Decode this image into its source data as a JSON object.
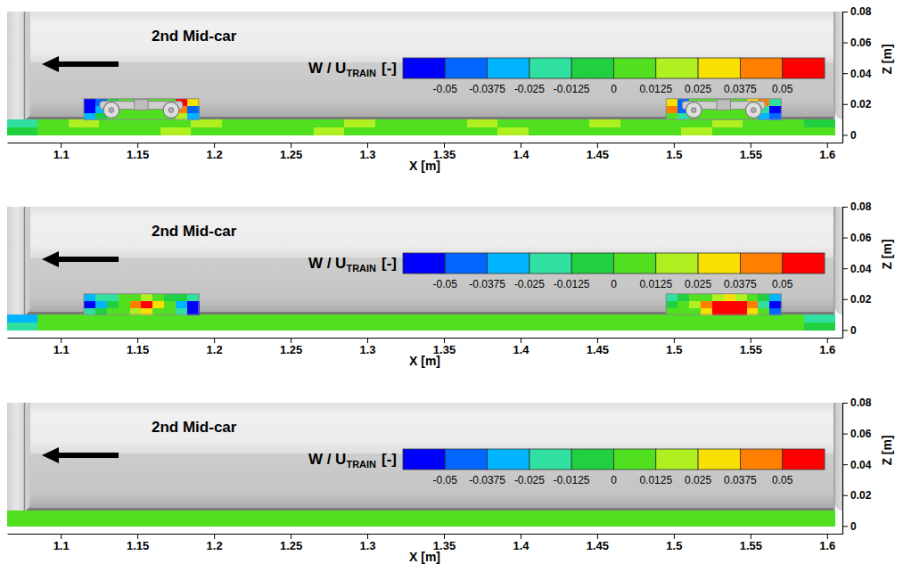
{
  "chart_data": [
    {
      "type": "heatmap",
      "title": "2nd Mid-car",
      "xlabel": "X [m]",
      "ylabel": "Z [m]",
      "xlim": [
        1.065,
        1.61
      ],
      "ylim": [
        -0.005,
        0.08
      ],
      "xticks": [
        1.1,
        1.15,
        1.2,
        1.25,
        1.3,
        1.35,
        1.4,
        1.45,
        1.5,
        1.55,
        1.6
      ],
      "yticks": [
        0,
        0.02,
        0.04,
        0.06,
        0.08
      ],
      "colorbar": {
        "title": "W / U",
        "title_sub": "TRAIN",
        "unit": "[-]",
        "range": [
          -0.0625,
          0.0625
        ],
        "ticks": [
          -0.05,
          -0.0375,
          -0.025,
          -0.0125,
          0,
          0.0125,
          0.025,
          0.0375,
          0.05
        ],
        "colors": [
          "#0000ff",
          "#0066ff",
          "#00b4ff",
          "#30e0a0",
          "#20d040",
          "#50e020",
          "#b0f020",
          "#f8e000",
          "#ff8000",
          "#ff0000"
        ]
      },
      "fields": [
        {
          "x": [
            1.065,
            1.085,
            1.105,
            1.125,
            1.145,
            1.165,
            1.185,
            1.205,
            1.225,
            1.245,
            1.265,
            1.285,
            1.305,
            1.325,
            1.345,
            1.365,
            1.385,
            1.405,
            1.425,
            1.445,
            1.465,
            1.485,
            1.505,
            1.525,
            1.545,
            1.565,
            1.585,
            1.605
          ],
          "z": [
            0,
            0.005,
            0.01
          ],
          "values": [
            [
              -0.01,
              0.005,
              0.01,
              0.005,
              0.01,
              0.015,
              0.005,
              0.01,
              0.005,
              0.01,
              0.015,
              0.005,
              0.01,
              0.005,
              0.005,
              0.01,
              0.015,
              0.005,
              0.01,
              0.005,
              0.01,
              0.005,
              0.015,
              0.005,
              0.01,
              0.005,
              0.01
            ],
            [
              -0.02,
              0.01,
              0.015,
              0.01,
              0.005,
              0.01,
              0.015,
              0.01,
              0.01,
              0.005,
              0.01,
              0.015,
              0.01,
              0.005,
              0.01,
              0.015,
              0.01,
              0.005,
              0.01,
              0.015,
              0.005,
              0.01,
              0.01,
              0.015,
              0.005,
              0.01,
              -0.01
            ]
          ]
        },
        {
          "x": [
            1.115,
            1.1225,
            1.13,
            1.1375,
            1.145,
            1.1525,
            1.16,
            1.1675,
            1.175,
            1.1825,
            1.19
          ],
          "z": [
            0.01,
            0.0145,
            0.019,
            0.0235
          ],
          "values": [
            [
              -0.03,
              -0.01,
              0,
              0.005,
              0.005,
              0.005,
              0,
              0.005,
              0.02,
              -0.03
            ],
            [
              -0.06,
              -0.03,
              0,
              0,
              0.005,
              0.005,
              0,
              0.01,
              0.04,
              -0.04
            ],
            [
              -0.06,
              -0.05,
              -0.01,
              0,
              0,
              0,
              0.005,
              0.01,
              0.05,
              0.03
            ]
          ]
        },
        {
          "x": [
            1.495,
            1.5025,
            1.51,
            1.5175,
            1.525,
            1.5325,
            1.54,
            1.5475,
            1.555,
            1.5625,
            1.57
          ],
          "z": [
            0.01,
            0.0145,
            0.019,
            0.0235
          ],
          "values": [
            [
              0.01,
              -0.02,
              0,
              0.005,
              0.005,
              0.005,
              0.005,
              0.01,
              -0.03,
              -0.05
            ],
            [
              0.04,
              -0.05,
              0,
              0,
              0.005,
              0.005,
              0.005,
              0.02,
              -0.02,
              -0.06
            ],
            [
              0.03,
              -0.04,
              0,
              0,
              0,
              0.005,
              0.01,
              0.03,
              0.04,
              -0.02
            ]
          ]
        }
      ]
    },
    {
      "type": "heatmap",
      "title": "2nd Mid-car",
      "xlabel": "X [m]",
      "ylabel": "Z [m]",
      "xlim": [
        1.065,
        1.61
      ],
      "ylim": [
        -0.005,
        0.08
      ],
      "xticks": [
        1.1,
        1.15,
        1.2,
        1.25,
        1.3,
        1.35,
        1.4,
        1.45,
        1.5,
        1.55,
        1.6
      ],
      "yticks": [
        0,
        0.02,
        0.04,
        0.06,
        0.08
      ],
      "colorbar": {
        "title": "W / U",
        "title_sub": "TRAIN",
        "unit": "[-]",
        "range": [
          -0.0625,
          0.0625
        ],
        "ticks": [
          -0.05,
          -0.0375,
          -0.025,
          -0.0125,
          0,
          0.0125,
          0.025,
          0.0375,
          0.05
        ],
        "colors": [
          "#0000ff",
          "#0066ff",
          "#00b4ff",
          "#30e0a0",
          "#20d040",
          "#50e020",
          "#b0f020",
          "#f8e000",
          "#ff8000",
          "#ff0000"
        ]
      },
      "fields": [
        {
          "x": [
            1.065,
            1.085,
            1.105,
            1.125,
            1.145,
            1.165,
            1.185,
            1.205,
            1.225,
            1.245,
            1.265,
            1.285,
            1.305,
            1.325,
            1.345,
            1.365,
            1.385,
            1.405,
            1.425,
            1.445,
            1.465,
            1.485,
            1.505,
            1.525,
            1.545,
            1.565,
            1.585,
            1.605
          ],
          "z": [
            0,
            0.005,
            0.01
          ],
          "values": [
            [
              -0.02,
              0.005,
              0.005,
              0.01,
              0.005,
              0.005,
              0.01,
              0.005,
              0.005,
              0.01,
              0.005,
              0.005,
              0.005,
              0.01,
              0.005,
              0.005,
              0.01,
              0.005,
              0.005,
              0.005,
              0.01,
              0.005,
              0.005,
              0.01,
              0.005,
              0.005,
              -0.01
            ],
            [
              -0.03,
              0.01,
              0.005,
              0.01,
              0.01,
              0.005,
              0.01,
              0.01,
              0.005,
              0.01,
              0.01,
              0.005,
              0.01,
              0.005,
              0.01,
              0.01,
              0.005,
              0.01,
              0.005,
              0.01,
              0.01,
              0.005,
              0.01,
              0.005,
              0.01,
              0.005,
              -0.02
            ]
          ]
        },
        {
          "x": [
            1.115,
            1.1225,
            1.13,
            1.1375,
            1.145,
            1.1525,
            1.16,
            1.1675,
            1.175,
            1.1825,
            1.19
          ],
          "z": [
            0.01,
            0.0145,
            0.019,
            0.0235
          ],
          "values": [
            [
              -0.02,
              -0.01,
              0,
              0.005,
              0.02,
              0.03,
              0.01,
              0,
              -0.02,
              -0.06
            ],
            [
              -0.06,
              -0.03,
              -0.01,
              0.01,
              0.04,
              0.05,
              0.03,
              0,
              -0.03,
              -0.06
            ],
            [
              -0.03,
              -0.02,
              -0.015,
              0,
              0.01,
              0.02,
              0.01,
              -0.01,
              -0.01,
              -0.02
            ]
          ]
        },
        {
          "x": [
            1.495,
            1.5025,
            1.51,
            1.5175,
            1.525,
            1.5325,
            1.54,
            1.5475,
            1.555,
            1.5625,
            1.57
          ],
          "z": [
            0.01,
            0.0145,
            0.019,
            0.0235
          ],
          "values": [
            [
              0,
              0.005,
              0.01,
              0.03,
              0.05,
              0.06,
              0.05,
              0.03,
              0,
              -0.05
            ],
            [
              -0.01,
              0,
              0.02,
              0.04,
              0.06,
              0.05,
              0.06,
              0.04,
              -0.02,
              -0.06
            ],
            [
              -0.015,
              -0.01,
              0,
              0.01,
              0.02,
              0.03,
              0.02,
              0.01,
              -0.01,
              -0.03
            ]
          ]
        }
      ]
    },
    {
      "type": "heatmap",
      "title": "2nd Mid-car",
      "xlabel": "X [m]",
      "ylabel": "Z [m]",
      "xlim": [
        1.065,
        1.61
      ],
      "ylim": [
        -0.005,
        0.08
      ],
      "xticks": [
        1.1,
        1.15,
        1.2,
        1.25,
        1.3,
        1.35,
        1.4,
        1.45,
        1.5,
        1.55,
        1.6
      ],
      "yticks": [
        0,
        0.02,
        0.04,
        0.06,
        0.08
      ],
      "colorbar": {
        "title": "W / U",
        "title_sub": "TRAIN",
        "unit": "[-]",
        "range": [
          -0.0625,
          0.0625
        ],
        "ticks": [
          -0.05,
          -0.0375,
          -0.025,
          -0.0125,
          0,
          0.0125,
          0.025,
          0.0375,
          0.05
        ],
        "colors": [
          "#0000ff",
          "#0066ff",
          "#00b4ff",
          "#30e0a0",
          "#20d040",
          "#50e020",
          "#b0f020",
          "#f8e000",
          "#ff8000",
          "#ff0000"
        ]
      },
      "fields": [
        {
          "x": [
            1.065,
            1.085,
            1.105,
            1.125,
            1.145,
            1.165,
            1.185,
            1.205,
            1.225,
            1.245,
            1.265,
            1.285,
            1.305,
            1.325,
            1.345,
            1.365,
            1.385,
            1.405,
            1.425,
            1.445,
            1.465,
            1.485,
            1.505,
            1.525,
            1.545,
            1.565,
            1.585,
            1.605
          ],
          "z": [
            0,
            0.005,
            0.01
          ],
          "values": [
            [
              0.005,
              0.005,
              0.005,
              0,
              0.005,
              0.005,
              0.005,
              0.005,
              0,
              0.005,
              0.005,
              0.005,
              0.005,
              0.005,
              0,
              0.005,
              0.005,
              0.005,
              0.005,
              0.005,
              0,
              0.005,
              0.005,
              0.005,
              0.005,
              0.005,
              0.005
            ],
            [
              0.005,
              0.005,
              0.01,
              0.005,
              0.005,
              0.005,
              0.01,
              0.005,
              0.005,
              0.005,
              0.01,
              0.005,
              0.005,
              0.005,
              0.005,
              0.01,
              0.005,
              0.005,
              0.005,
              0.01,
              0.005,
              0.005,
              0.005,
              0.005,
              0.01,
              0.005,
              0.005
            ]
          ]
        }
      ]
    }
  ]
}
